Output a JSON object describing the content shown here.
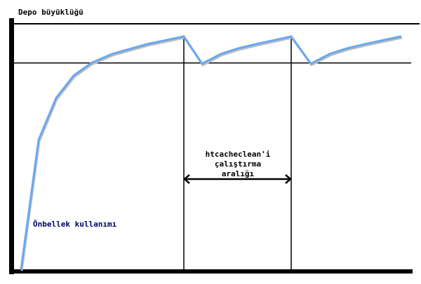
{
  "labels": {
    "y_axis": "Depo büyüklüğü",
    "interval_line1": "htcacheclean'i",
    "interval_line2": "çalıştırma",
    "interval_line3": "aralığı",
    "curve": "Önbellek kullanımı"
  },
  "colors": {
    "curve": "#6aa8f0",
    "axes": "#000000",
    "curve_label": "#000066"
  }
}
